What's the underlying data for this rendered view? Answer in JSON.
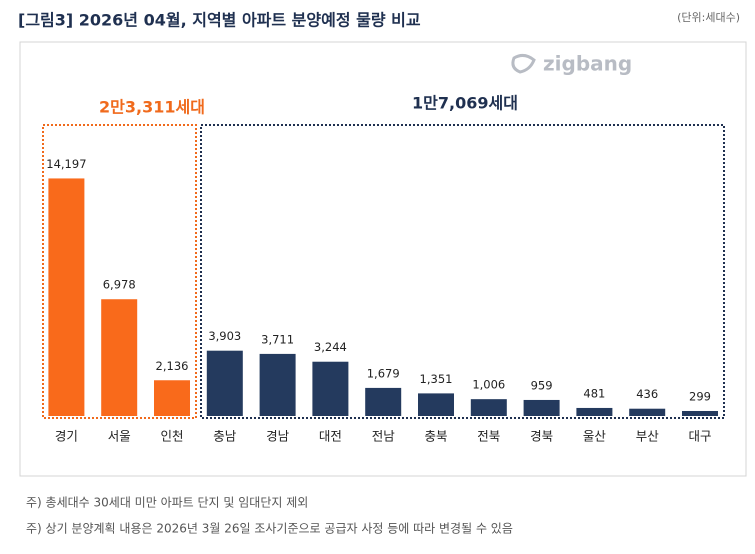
{
  "chart_data": {
    "type": "bar",
    "title": "[그림3] 2026년 04월, 지역별 아파트 분양예정 물량 비교",
    "unit": "(단위:세대수)",
    "logo": "zigbang",
    "annotations": [
      "2만3,311세대",
      "1만7,069세대"
    ],
    "categories": [
      "경기",
      "서울",
      "인천",
      "충남",
      "경남",
      "대전",
      "전남",
      "충북",
      "전북",
      "경북",
      "울산",
      "부산",
      "대구"
    ],
    "values": [
      14197,
      6978,
      2136,
      3903,
      3711,
      3244,
      1679,
      1351,
      1006,
      959,
      481,
      436,
      299
    ],
    "value_labels": [
      "14,197",
      "6,978",
      "2,136",
      "3,903",
      "3,711",
      "3,244",
      "1,679",
      "1,351",
      "1,006",
      "959",
      "481",
      "436",
      "299"
    ],
    "colors": [
      "#f96a1b",
      "#f96a1b",
      "#f96a1b",
      "#243a5e",
      "#243a5e",
      "#243a5e",
      "#243a5e",
      "#243a5e",
      "#243a5e",
      "#243a5e",
      "#243a5e",
      "#243a5e",
      "#243a5e"
    ],
    "ylim": [
      0,
      15000
    ],
    "notes": [
      "주) 총세대수 30세대 미만 아파트 단지 및 임대단지 제외",
      "주) 상기 분양계획 내용은 2026년 3월 26일 조사기준으로 공급자 사정 등에 따라 변경될 수 있음"
    ]
  }
}
